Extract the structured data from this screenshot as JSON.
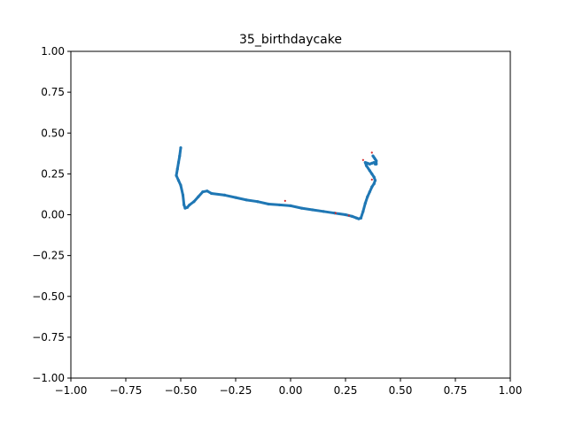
{
  "chart_data": {
    "type": "scatter",
    "title": "35_birthdaycake",
    "xlabel": "",
    "ylabel": "",
    "xlim": [
      -1.0,
      1.0
    ],
    "ylim": [
      -1.0,
      1.0
    ],
    "xticks": [
      "−1.00",
      "−0.75",
      "−0.50",
      "−0.25",
      "0.00",
      "0.25",
      "0.50",
      "0.75",
      "1.00"
    ],
    "yticks": [
      "−1.00",
      "−0.75",
      "−0.50",
      "−0.25",
      "0.00",
      "0.25",
      "0.50",
      "0.75",
      "1.00"
    ],
    "xtick_values": [
      -1.0,
      -0.75,
      -0.5,
      -0.25,
      0.0,
      0.25,
      0.5,
      0.75,
      1.0
    ],
    "ytick_values": [
      -1.0,
      -0.75,
      -0.5,
      -0.25,
      0.0,
      0.25,
      0.5,
      0.75,
      1.0
    ],
    "grid": false,
    "colors": {
      "main": "#1f77b4",
      "outlier": "#d62728"
    },
    "series": [
      {
        "kind": "stroke",
        "x": [
          -0.5,
          -0.505,
          -0.51,
          -0.515,
          -0.52,
          -0.51,
          -0.5,
          -0.49,
          -0.485,
          -0.48,
          -0.47,
          -0.46,
          -0.44,
          -0.42,
          -0.4,
          -0.38,
          -0.36,
          -0.3,
          -0.25,
          -0.2,
          -0.15,
          -0.1,
          -0.05,
          0.0,
          0.05,
          0.1,
          0.15,
          0.2,
          0.25,
          0.28,
          0.3,
          0.31,
          0.32
        ],
        "y": [
          0.41,
          0.36,
          0.32,
          0.28,
          0.24,
          0.21,
          0.18,
          0.12,
          0.06,
          0.04,
          0.045,
          0.06,
          0.08,
          0.11,
          0.14,
          0.145,
          0.13,
          0.12,
          0.105,
          0.09,
          0.08,
          0.065,
          0.06,
          0.055,
          0.04,
          0.03,
          0.02,
          0.01,
          0.0,
          -0.01,
          -0.02,
          -0.025,
          -0.02
        ]
      },
      {
        "kind": "stroke",
        "x": [
          0.32,
          0.33,
          0.34,
          0.35,
          0.36,
          0.37,
          0.38,
          0.385,
          0.38,
          0.37,
          0.36,
          0.345,
          0.34,
          0.35,
          0.36,
          0.37,
          0.38,
          0.385,
          0.39,
          0.39,
          0.385,
          0.38,
          0.375
        ],
        "y": [
          -0.02,
          0.02,
          0.07,
          0.11,
          0.14,
          0.17,
          0.19,
          0.21,
          0.23,
          0.25,
          0.27,
          0.3,
          0.32,
          0.315,
          0.31,
          0.315,
          0.32,
          0.31,
          0.31,
          0.33,
          0.34,
          0.35,
          0.36
        ]
      },
      {
        "kind": "points",
        "x": [
          -0.025,
          0.33,
          0.37,
          0.37,
          0.205,
          0.265
        ],
        "y": [
          0.085,
          0.335,
          0.38,
          0.215,
          0.01,
          -0.005
        ]
      }
    ]
  }
}
